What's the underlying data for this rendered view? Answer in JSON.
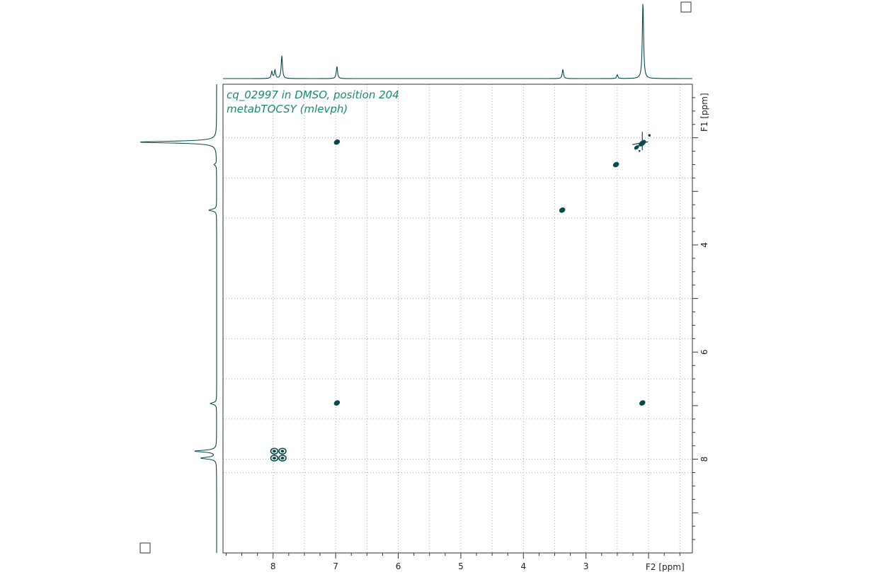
{
  "chart_data": {
    "type": "heatmap",
    "subtype": "2D NMR contour plot with 1D projections",
    "title_lines": [
      "cq_02997 in DMSO, position 204",
      "metabTOCSY (mlevph)"
    ],
    "xlabel": "F2 [ppm]",
    "ylabel": "F1 [ppm]",
    "x_range": [
      8.8,
      1.3
    ],
    "y_range": [
      1.0,
      9.75
    ],
    "x_axis_reversed": true,
    "y_axis_increasing_downward": true,
    "x_ticks": [
      8,
      7,
      6,
      5,
      4,
      3
    ],
    "y_ticks": [
      4,
      6,
      8
    ],
    "x_gridlines": [
      8,
      7.5,
      7,
      6.5,
      6,
      5.5,
      5,
      4.5,
      4,
      3.5,
      3,
      2.5,
      2,
      1.5
    ],
    "y_gridlines": [
      2,
      2.75,
      3.5,
      5,
      5.75,
      6.5,
      7.25,
      8,
      8.25
    ],
    "grid": true,
    "peak_color": "#0b4a4a",
    "peaks": [
      {
        "f2": 6.98,
        "f1": 2.08,
        "kind": "cross"
      },
      {
        "f2": 2.1,
        "f1": 2.1,
        "kind": "diagonal-cluster"
      },
      {
        "f2": 2.52,
        "f1": 2.5,
        "kind": "diagonal"
      },
      {
        "f2": 3.38,
        "f1": 3.35,
        "kind": "diagonal"
      },
      {
        "f2": 6.98,
        "f1": 6.95,
        "kind": "diagonal"
      },
      {
        "f2": 2.1,
        "f1": 6.95,
        "kind": "cross"
      },
      {
        "f2": 7.98,
        "f1": 7.85,
        "kind": "multiplet"
      },
      {
        "f2": 7.85,
        "f1": 7.85,
        "kind": "multiplet"
      },
      {
        "f2": 7.98,
        "f1": 7.98,
        "kind": "multiplet"
      },
      {
        "f2": 7.85,
        "f1": 7.98,
        "kind": "multiplet"
      }
    ],
    "f2_projection": [
      {
        "ppm": 8.02,
        "intensity": 0.09
      },
      {
        "ppm": 7.97,
        "intensity": 0.11
      },
      {
        "ppm": 7.86,
        "intensity": 0.3
      },
      {
        "ppm": 6.98,
        "intensity": 0.16
      },
      {
        "ppm": 3.37,
        "intensity": 0.12
      },
      {
        "ppm": 2.5,
        "intensity": 0.05
      },
      {
        "ppm": 2.09,
        "intensity": 1.0
      }
    ],
    "f1_projection": [
      {
        "ppm": 2.08,
        "intensity": 1.0
      },
      {
        "ppm": 2.5,
        "intensity": 0.03
      },
      {
        "ppm": 3.35,
        "intensity": 0.1
      },
      {
        "ppm": 6.96,
        "intensity": 0.08
      },
      {
        "ppm": 7.85,
        "intensity": 0.28
      },
      {
        "ppm": 7.98,
        "intensity": 0.2
      }
    ]
  }
}
